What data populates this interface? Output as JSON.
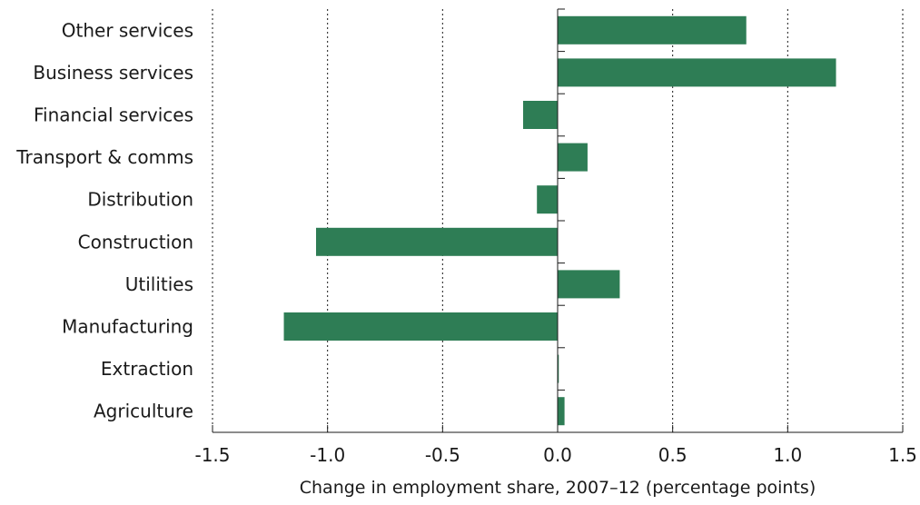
{
  "chart_data": {
    "type": "bar",
    "orientation": "horizontal",
    "categories": [
      "Other services",
      "Business services",
      "Financial services",
      "Transport & comms",
      "Distribution",
      "Construction",
      "Utilities",
      "Manufacturing",
      "Extraction",
      "Agriculture"
    ],
    "values": [
      0.82,
      1.21,
      -0.15,
      0.13,
      -0.09,
      -1.05,
      0.27,
      -1.19,
      0.005,
      0.03
    ],
    "xlabel": "Change in employment share, 2007–12 (percentage points)",
    "ylabel": "",
    "xlim": [
      -1.5,
      1.5
    ],
    "xticks": [
      -1.5,
      -1.0,
      -0.5,
      0.0,
      0.5,
      1.0,
      1.5
    ],
    "xtick_labels": [
      "-1.5",
      "-1.0",
      "-0.5",
      "0.0",
      "0.5",
      "1.0",
      "1.5"
    ],
    "grid": "vertical dotted",
    "bar_color": "#2e7d55"
  }
}
